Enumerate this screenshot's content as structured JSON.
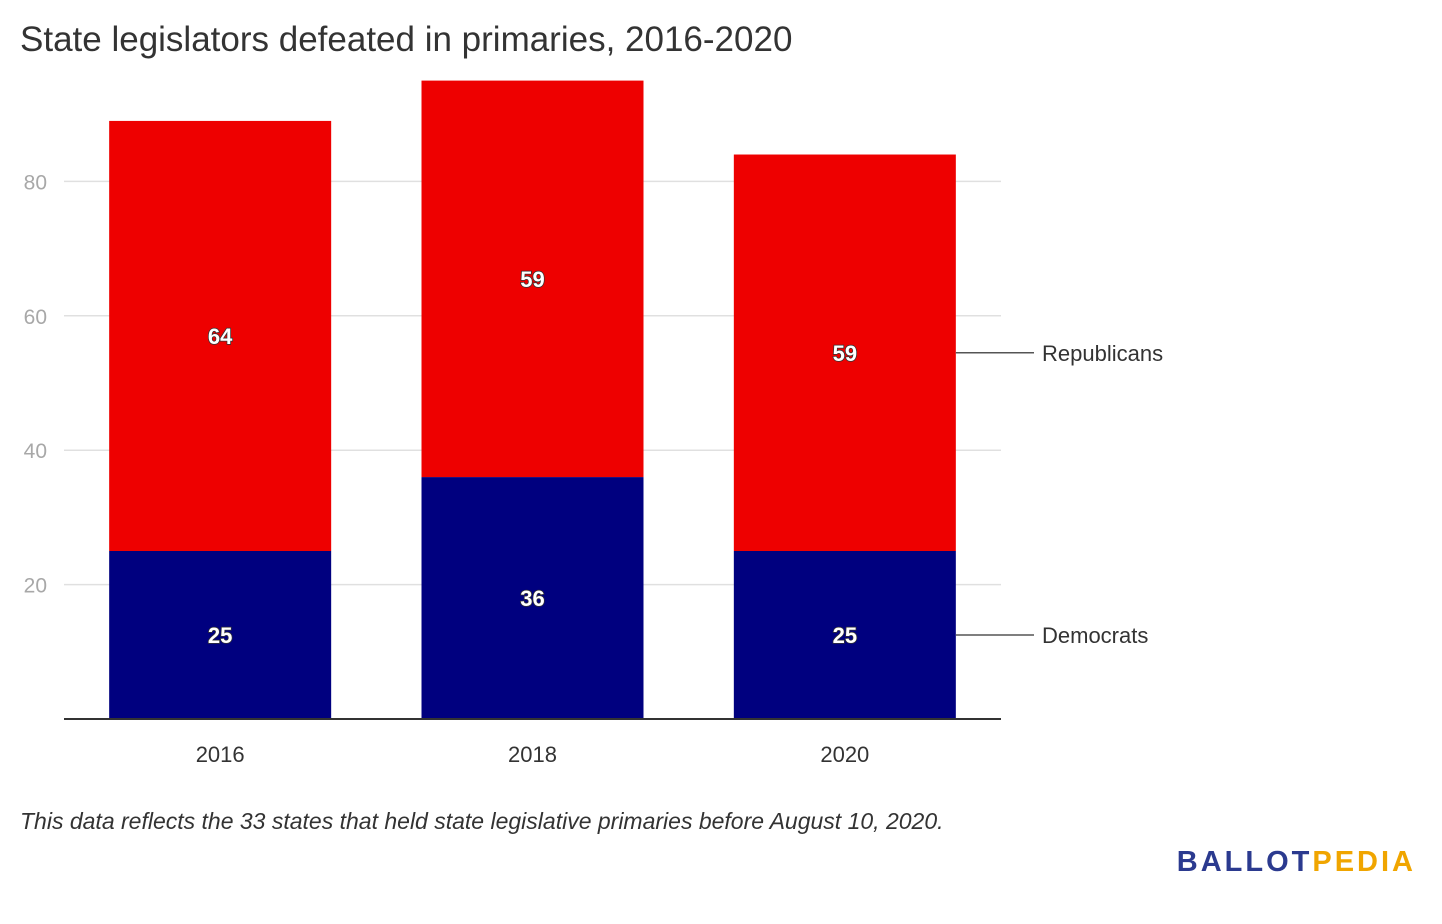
{
  "chart_data": {
    "type": "bar",
    "stacked": true,
    "title": "State legislators defeated in primaries, 2016-2020",
    "categories": [
      "2016",
      "2018",
      "2020"
    ],
    "series": [
      {
        "name": "Democrats",
        "values": [
          25,
          36,
          25
        ],
        "color": "#00007f"
      },
      {
        "name": "Republicans",
        "values": [
          64,
          59,
          59
        ],
        "color": "#ee0000"
      }
    ],
    "yticks": [
      20,
      40,
      60,
      80
    ],
    "ylim": [
      0,
      95
    ],
    "xlabel": "",
    "ylabel": "",
    "grid": true,
    "legend": "right, inline labels"
  },
  "footnote": "This data reflects the 33 states that held state legislative primaries before August 10, 2020.",
  "logo": {
    "part1": "BALLOT",
    "part2": "PEDIA"
  }
}
